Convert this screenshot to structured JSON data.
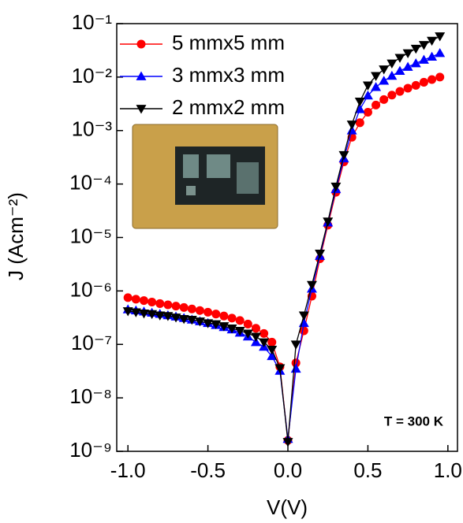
{
  "chart_data": {
    "type": "line",
    "xlabel": "V(V)",
    "ylabel": "J (Acm⁻²)",
    "yscale": "log",
    "annotation": "T = 300 K",
    "legend": "upper left",
    "xlim": [
      -1.07,
      1.06
    ],
    "ylim": [
      1e-09,
      0.1
    ],
    "xticks": [
      {
        "value": -1,
        "label": "-1.0"
      },
      -0.5,
      {
        "value": 0,
        "label": "0.0"
      },
      0.5,
      {
        "value": 1,
        "label": "1.0"
      }
    ],
    "yticks": [
      {
        "value": 1e-09,
        "label": "10⁻⁹"
      },
      {
        "value": 1e-08,
        "label": "10⁻⁸"
      },
      {
        "value": 1e-07,
        "label": "10⁻⁷"
      },
      {
        "value": 1e-06,
        "label": "10⁻⁶"
      },
      {
        "value": 1e-05,
        "label": "10⁻⁵"
      },
      {
        "value": 0.0001,
        "label": "10⁻⁴"
      },
      {
        "value": 0.001,
        "label": "10⁻³"
      },
      {
        "value": 0.01,
        "label": "10⁻²"
      },
      {
        "value": 0.1,
        "label": "10⁻¹"
      }
    ],
    "x": [
      -1.0,
      -0.95,
      -0.9,
      -0.85,
      -0.8,
      -0.75,
      -0.7,
      -0.65,
      -0.6,
      -0.55,
      -0.5,
      -0.45,
      -0.4,
      -0.35,
      -0.3,
      -0.25,
      -0.2,
      -0.15,
      -0.1,
      -0.05,
      0.0,
      0.05,
      0.1,
      0.15,
      0.2,
      0.25,
      0.3,
      0.35,
      0.4,
      0.45,
      0.5,
      0.55,
      0.6,
      0.65,
      0.7,
      0.75,
      0.8,
      0.85,
      0.9,
      0.95
    ],
    "series": [
      {
        "name": "5 mmx5 mm",
        "color": "#ff0000",
        "marker": "circle",
        "values": [
          7.5e-07,
          7e-07,
          6.6e-07,
          6.2e-07,
          5.8e-07,
          5.5e-07,
          5.2e-07,
          4.9e-07,
          4.6e-07,
          4.3e-07,
          4e-07,
          3.7e-07,
          3.4e-07,
          3.1e-07,
          2.8e-07,
          2.4e-07,
          2e-07,
          1.6e-07,
          1.1e-07,
          3.8e-08,
          1.6e-09,
          4.5e-08,
          1.8e-07,
          8e-07,
          4e-06,
          1.7e-05,
          7e-05,
          0.00026,
          0.00075,
          0.0014,
          0.0022,
          0.003,
          0.0038,
          0.0046,
          0.0054,
          0.0062,
          0.007,
          0.008,
          0.009,
          0.01
        ]
      },
      {
        "name": "3 mmx3 mm",
        "color": "#0000ff",
        "marker": "triangle-up",
        "values": [
          4.5e-07,
          4.3e-07,
          4.1e-07,
          3.9e-07,
          3.7e-07,
          3.5e-07,
          3.3e-07,
          3.1e-07,
          2.9e-07,
          2.7e-07,
          2.5e-07,
          2.3e-07,
          2.1e-07,
          1.9e-07,
          1.65e-07,
          1.4e-07,
          1.1e-07,
          9e-08,
          6e-08,
          3.2e-08,
          1.7e-09,
          3.5e-08,
          2.5e-07,
          1.1e-06,
          4.5e-06,
          1.9e-05,
          8e-05,
          0.0003,
          0.001,
          0.0025,
          0.0045,
          0.0065,
          0.0085,
          0.0105,
          0.013,
          0.0155,
          0.018,
          0.021,
          0.024,
          0.028
        ]
      },
      {
        "name": "2 mmx2 mm",
        "color": "#000000",
        "marker": "triangle-down",
        "values": [
          4.2e-07,
          4e-07,
          3.8e-07,
          3.7e-07,
          3.5e-07,
          3.4e-07,
          3.2e-07,
          3e-07,
          2.9e-07,
          2.7e-07,
          2.5e-07,
          2.4e-07,
          2.2e-07,
          2e-07,
          1.8e-07,
          1.6e-07,
          1.4e-07,
          1.1e-07,
          8e-08,
          3.6e-08,
          1.5e-09,
          1e-07,
          3.5e-07,
          1.3e-06,
          5e-06,
          2e-05,
          9e-05,
          0.00035,
          0.0013,
          0.0035,
          0.007,
          0.0105,
          0.014,
          0.018,
          0.023,
          0.028,
          0.034,
          0.04,
          0.048,
          0.058
        ]
      }
    ]
  }
}
